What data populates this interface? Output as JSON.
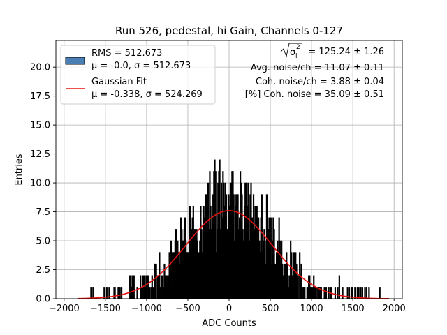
{
  "chart_data": {
    "type": "histogram",
    "title": "Run 526, pedestal, hi Gain, Channels 0-127",
    "xlabel": "ADC Counts",
    "ylabel": "Entries",
    "xlim": [
      -2100,
      2100
    ],
    "ylim": [
      0,
      22.3
    ],
    "xticks": [
      -2000,
      -1500,
      -1000,
      -500,
      0,
      500,
      1000,
      1500,
      2000
    ],
    "xtick_labels": [
      "−2000",
      "−1500",
      "−1000",
      "−500",
      "0",
      "500",
      "1000",
      "1500",
      "2000"
    ],
    "yticks": [
      0,
      2.5,
      5,
      7.5,
      10,
      12.5,
      15,
      17.5,
      20
    ],
    "ytick_labels": [
      "0.0",
      "2.5",
      "5.0",
      "7.5",
      "10.0",
      "12.5",
      "15.0",
      "17.5",
      "20.0"
    ],
    "grid": true,
    "histogram": {
      "name": "RMS = 512.673",
      "stats": "μ = -0.0, σ = 512.673",
      "bin_width": 10,
      "data_range": [
        -1830,
        1940
      ],
      "peak_value": 16,
      "color": "#000000",
      "legend_color": "#4a7fb5"
    },
    "fit": {
      "name": "Gaussian Fit",
      "stats": "μ = -0.338, σ = 524.269",
      "mu": -0.338,
      "sigma": 524.269,
      "amplitude": 7.6,
      "range": [
        -1830,
        1940
      ],
      "color": "#e8130f"
    },
    "legend_position": "top-left",
    "annotations": [
      {
        "type": "sqrt",
        "symbol": "σ",
        "sub": "i",
        "sup": "2",
        "value": " = 125.24 ± 1.26"
      },
      {
        "type": "text",
        "text": "Avg. noise/ch = 11.07 ± 0.11"
      },
      {
        "type": "text",
        "text": "Coh. noise/ch = 3.88 ± 0.04"
      },
      {
        "type": "text",
        "text": "[%] Coh. noise = 35.09 ± 0.51"
      }
    ]
  }
}
